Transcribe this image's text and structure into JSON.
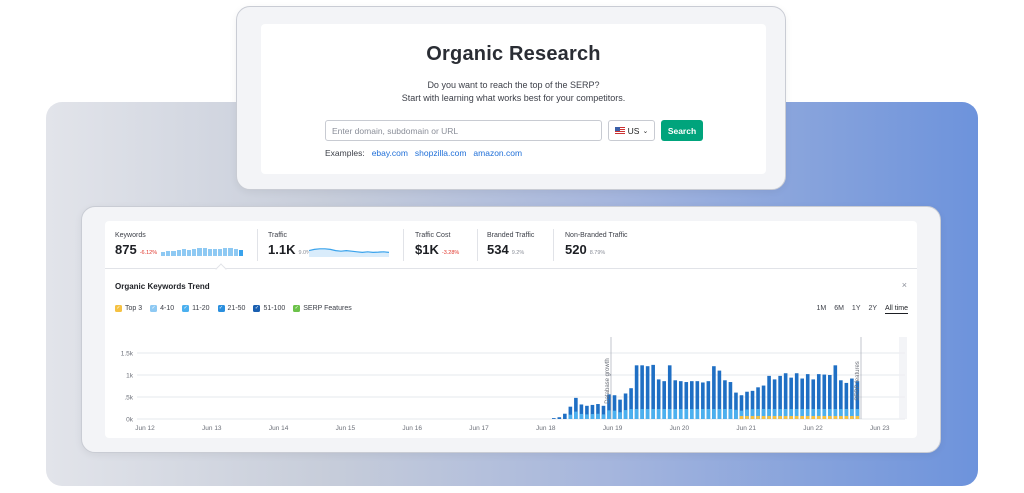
{
  "search": {
    "title": "Organic Research",
    "subtitle_line1": "Do you want to reach the top of the SERP?",
    "subtitle_line2": "Start with learning what works best for your competitors.",
    "input_placeholder": "Enter domain, subdomain or URL",
    "database": "US",
    "button_label": "Search",
    "examples_label": "Examples:",
    "examples": [
      "ebay.com",
      "shopzilla.com",
      "amazon.com"
    ]
  },
  "metrics": [
    {
      "label": "Keywords",
      "value": "875",
      "delta": "-6.12%"
    },
    {
      "label": "Traffic",
      "value": "1.1K",
      "delta": "9.0%"
    },
    {
      "label": "Traffic Cost",
      "value": "$1K",
      "delta": "-3.28%"
    },
    {
      "label": "Branded Traffic",
      "value": "534",
      "delta": "9.2%"
    },
    {
      "label": "Non-Branded Traffic",
      "value": "520",
      "delta": "8.79%"
    }
  ],
  "keywords_sparkline": [
    0.5,
    0.55,
    0.6,
    0.72,
    0.78,
    0.7,
    0.8,
    0.85,
    0.9,
    0.75,
    0.8,
    0.78,
    0.85,
    0.9,
    0.8,
    0.7
  ],
  "traffic_sparkline": [
    0.45,
    0.55,
    0.6,
    0.6,
    0.55,
    0.45,
    0.4,
    0.45,
    0.4,
    0.35,
    0.3,
    0.35,
    0.3,
    0.32,
    0.35,
    0.3
  ],
  "trend": {
    "title": "Organic Keywords Trend",
    "close": "×",
    "legend": [
      {
        "label": "Top 3",
        "color": "#f5c142"
      },
      {
        "label": "4-10",
        "color": "#8ec9f3"
      },
      {
        "label": "11-20",
        "color": "#4bb0ef"
      },
      {
        "label": "21-50",
        "color": "#2a8fde"
      },
      {
        "label": "51-100",
        "color": "#1a5fb0"
      },
      {
        "label": "SERP Features",
        "color": "#6cc24a"
      }
    ],
    "periods": [
      "1M",
      "6M",
      "1Y",
      "2Y",
      "All time"
    ],
    "active_period": "All time",
    "annotations": [
      "Database growth",
      "SERP features"
    ]
  },
  "chart_data": {
    "type": "bar",
    "ylabel": "",
    "yticks": [
      "1.5k",
      "1k",
      ".5k",
      "0k"
    ],
    "ylim": [
      0,
      1500
    ],
    "x_labels": [
      "Jun 12",
      "Jun 13",
      "Jun 14",
      "Jun 15",
      "Jun 16",
      "Jun 17",
      "Jun 18",
      "Jun 19",
      "Jun 20",
      "Jun 21",
      "Jun 22",
      "Jun 23"
    ],
    "values": [
      20,
      40,
      120,
      280,
      480,
      330,
      300,
      320,
      340,
      300,
      560,
      540,
      440,
      580,
      700,
      1220,
      1220,
      1200,
      1230,
      900,
      860,
      1220,
      880,
      860,
      840,
      860,
      860,
      830,
      860,
      1200,
      1100,
      880,
      840,
      600,
      540,
      620,
      640,
      720,
      760,
      980,
      900,
      980,
      1040,
      940,
      1040,
      920,
      1020,
      900,
      1020,
      1010,
      1000,
      1220,
      880,
      820,
      920,
      860
    ]
  }
}
